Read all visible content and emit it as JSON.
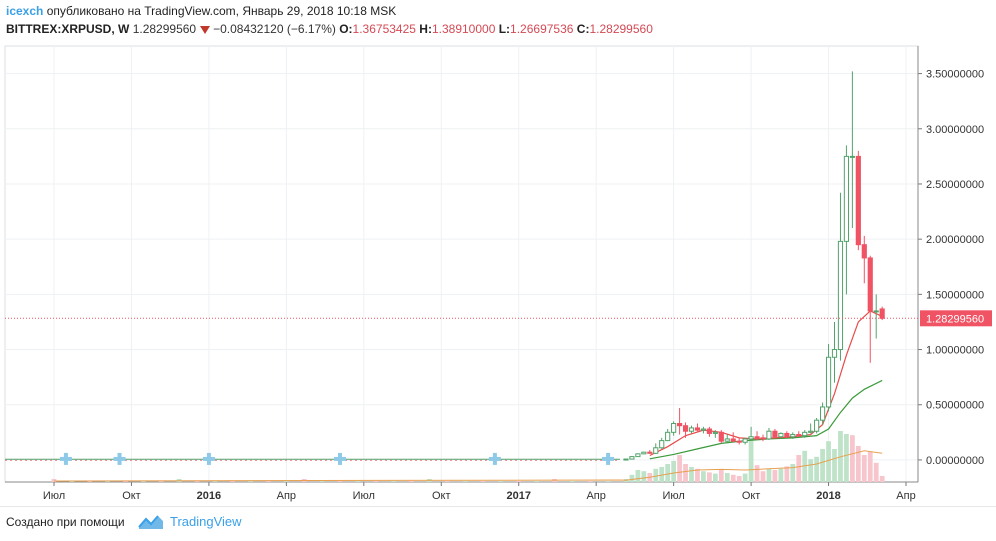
{
  "header": {
    "author": "icexch",
    "published": "опубликовано на TradingView.com, Январь 29, 2018 10:18 MSK",
    "symbol": "BITTREX:XRPUSD, W",
    "last": "1.28299560",
    "change": "−0.08432120 (−6.17%)",
    "o_label": "O:",
    "o": "1.36753425",
    "h_label": "H:",
    "h": "1.38910000",
    "l_label": "L:",
    "l": "1.26697536",
    "c_label": "C:",
    "c": "1.28299560"
  },
  "footer": {
    "made_with": "Создано при помощи",
    "brand": "TradingView"
  },
  "colors": {
    "up": "#52a36b",
    "up_fill": "#ffffff",
    "down": "#f05364",
    "ma_fast": "#e84a4a",
    "ma_slow": "#3a9a3a",
    "vol_ma": "#e8a050",
    "vol_up": "#bfe3c8",
    "vol_down": "#f7c5cc",
    "grid": "#eef1f4",
    "last_price": "#f05364",
    "event": "#8ec9e8"
  },
  "chart_data": {
    "type": "candlestick",
    "symbol": "BITTREX:XRPUSD",
    "timeframe": "W",
    "ylim": [
      -0.2,
      3.75
    ],
    "y_ticks": [
      "3.50000000",
      "3.00000000",
      "2.50000000",
      "2.00000000",
      "1.50000000",
      "1.00000000",
      "0.50000000",
      "0.00000000"
    ],
    "y_tick_values": [
      3.5,
      3.0,
      2.5,
      2.0,
      1.5,
      1.0,
      0.5,
      0.0
    ],
    "x_ticks": [
      "Июл",
      "Окт",
      "2016",
      "Апр",
      "Июл",
      "Окт",
      "2017",
      "Апр",
      "Июл",
      "Окт",
      "2018",
      "Апр"
    ],
    "x_tick_bold": [
      false,
      false,
      true,
      false,
      false,
      false,
      true,
      false,
      false,
      false,
      true,
      false
    ],
    "x_tick_weeks": [
      0,
      13,
      26,
      39,
      52,
      65,
      78,
      91,
      104,
      117,
      130,
      143
    ],
    "last_price": 1.282995,
    "last_price_label": "1.28299560",
    "events_weeks": [
      2,
      11,
      26,
      48,
      74,
      93
    ],
    "candles": [
      {
        "w": 96,
        "o": 0.006,
        "h": 0.009,
        "l": 0.006,
        "c": 0.008
      },
      {
        "w": 97,
        "o": 0.008,
        "h": 0.035,
        "l": 0.008,
        "c": 0.03
      },
      {
        "w": 98,
        "o": 0.03,
        "h": 0.06,
        "l": 0.028,
        "c": 0.055
      },
      {
        "w": 99,
        "o": 0.055,
        "h": 0.075,
        "l": 0.05,
        "c": 0.07
      },
      {
        "w": 100,
        "o": 0.07,
        "h": 0.09,
        "l": 0.055,
        "c": 0.06
      },
      {
        "w": 101,
        "o": 0.06,
        "h": 0.15,
        "l": 0.055,
        "c": 0.11
      },
      {
        "w": 102,
        "o": 0.11,
        "h": 0.2,
        "l": 0.1,
        "c": 0.175
      },
      {
        "w": 103,
        "o": 0.175,
        "h": 0.28,
        "l": 0.17,
        "c": 0.25
      },
      {
        "w": 104,
        "o": 0.25,
        "h": 0.35,
        "l": 0.22,
        "c": 0.33
      },
      {
        "w": 105,
        "o": 0.33,
        "h": 0.47,
        "l": 0.23,
        "c": 0.31
      },
      {
        "w": 106,
        "o": 0.31,
        "h": 0.34,
        "l": 0.2,
        "c": 0.26
      },
      {
        "w": 107,
        "o": 0.26,
        "h": 0.31,
        "l": 0.24,
        "c": 0.29
      },
      {
        "w": 108,
        "o": 0.29,
        "h": 0.33,
        "l": 0.26,
        "c": 0.27
      },
      {
        "w": 109,
        "o": 0.27,
        "h": 0.3,
        "l": 0.24,
        "c": 0.28
      },
      {
        "w": 110,
        "o": 0.28,
        "h": 0.3,
        "l": 0.21,
        "c": 0.24
      },
      {
        "w": 111,
        "o": 0.24,
        "h": 0.27,
        "l": 0.2,
        "c": 0.25
      },
      {
        "w": 112,
        "o": 0.25,
        "h": 0.27,
        "l": 0.15,
        "c": 0.17
      },
      {
        "w": 113,
        "o": 0.17,
        "h": 0.23,
        "l": 0.15,
        "c": 0.19
      },
      {
        "w": 114,
        "o": 0.19,
        "h": 0.25,
        "l": 0.16,
        "c": 0.17
      },
      {
        "w": 115,
        "o": 0.17,
        "h": 0.2,
        "l": 0.14,
        "c": 0.16
      },
      {
        "w": 116,
        "o": 0.16,
        "h": 0.2,
        "l": 0.14,
        "c": 0.19
      },
      {
        "w": 117,
        "o": 0.19,
        "h": 0.3,
        "l": 0.18,
        "c": 0.21
      },
      {
        "w": 118,
        "o": 0.21,
        "h": 0.26,
        "l": 0.18,
        "c": 0.2
      },
      {
        "w": 119,
        "o": 0.2,
        "h": 0.23,
        "l": 0.17,
        "c": 0.19
      },
      {
        "w": 120,
        "o": 0.19,
        "h": 0.29,
        "l": 0.18,
        "c": 0.26
      },
      {
        "w": 121,
        "o": 0.26,
        "h": 0.28,
        "l": 0.2,
        "c": 0.21
      },
      {
        "w": 122,
        "o": 0.21,
        "h": 0.25,
        "l": 0.19,
        "c": 0.24
      },
      {
        "w": 123,
        "o": 0.24,
        "h": 0.26,
        "l": 0.2,
        "c": 0.21
      },
      {
        "w": 124,
        "o": 0.21,
        "h": 0.25,
        "l": 0.19,
        "c": 0.23
      },
      {
        "w": 125,
        "o": 0.23,
        "h": 0.26,
        "l": 0.21,
        "c": 0.22
      },
      {
        "w": 126,
        "o": 0.22,
        "h": 0.27,
        "l": 0.2,
        "c": 0.25
      },
      {
        "w": 127,
        "o": 0.25,
        "h": 0.33,
        "l": 0.24,
        "c": 0.26
      },
      {
        "w": 128,
        "o": 0.26,
        "h": 0.38,
        "l": 0.24,
        "c": 0.36
      },
      {
        "w": 129,
        "o": 0.36,
        "h": 0.52,
        "l": 0.32,
        "c": 0.48
      },
      {
        "w": 130,
        "o": 0.48,
        "h": 1.05,
        "l": 0.44,
        "c": 0.93
      },
      {
        "w": 131,
        "o": 0.93,
        "h": 1.25,
        "l": 0.7,
        "c": 1.0
      },
      {
        "w": 132,
        "o": 1.0,
        "h": 2.42,
        "l": 0.9,
        "c": 1.98
      },
      {
        "w": 133,
        "o": 1.98,
        "h": 2.85,
        "l": 1.5,
        "c": 2.75
      },
      {
        "w": 134,
        "o": 2.75,
        "h": 3.52,
        "l": 2.1,
        "c": 2.75
      },
      {
        "w": 135,
        "o": 2.75,
        "h": 2.8,
        "l": 1.9,
        "c": 1.95
      },
      {
        "w": 136,
        "o": 1.95,
        "h": 2.03,
        "l": 1.6,
        "c": 1.83
      },
      {
        "w": 137,
        "o": 1.83,
        "h": 1.85,
        "l": 0.88,
        "c": 1.35
      },
      {
        "w": 138,
        "o": 1.35,
        "h": 1.5,
        "l": 1.1,
        "c": 1.35
      },
      {
        "w": 139,
        "o": 1.368,
        "h": 1.389,
        "l": 1.267,
        "c": 1.283
      }
    ],
    "flat_until_week": 95,
    "flat_value": 0.006,
    "ma_fast": [
      {
        "w": 100,
        "v": 0.04
      },
      {
        "w": 103,
        "v": 0.12
      },
      {
        "w": 106,
        "v": 0.22
      },
      {
        "w": 109,
        "v": 0.27
      },
      {
        "w": 112,
        "v": 0.25
      },
      {
        "w": 115,
        "v": 0.2
      },
      {
        "w": 118,
        "v": 0.19
      },
      {
        "w": 121,
        "v": 0.2
      },
      {
        "w": 124,
        "v": 0.21
      },
      {
        "w": 127,
        "v": 0.23
      },
      {
        "w": 129,
        "v": 0.32
      },
      {
        "w": 131,
        "v": 0.6
      },
      {
        "w": 133,
        "v": 0.95
      },
      {
        "w": 135,
        "v": 1.25
      },
      {
        "w": 137,
        "v": 1.35
      },
      {
        "w": 139,
        "v": 1.3
      }
    ],
    "ma_slow": [
      {
        "w": 100,
        "v": 0.01
      },
      {
        "w": 104,
        "v": 0.05
      },
      {
        "w": 108,
        "v": 0.1
      },
      {
        "w": 112,
        "v": 0.15
      },
      {
        "w": 116,
        "v": 0.175
      },
      {
        "w": 120,
        "v": 0.19
      },
      {
        "w": 124,
        "v": 0.2
      },
      {
        "w": 128,
        "v": 0.22
      },
      {
        "w": 130,
        "v": 0.28
      },
      {
        "w": 132,
        "v": 0.43
      },
      {
        "w": 134,
        "v": 0.56
      },
      {
        "w": 136,
        "v": 0.64
      },
      {
        "w": 139,
        "v": 0.72
      }
    ],
    "volume_scale_max": 1.0,
    "volumes": [
      {
        "w": 96,
        "v": 0.05,
        "up": true
      },
      {
        "w": 97,
        "v": 0.12,
        "up": true
      },
      {
        "w": 98,
        "v": 0.2,
        "up": true
      },
      {
        "w": 99,
        "v": 0.18,
        "up": true
      },
      {
        "w": 100,
        "v": 0.15,
        "up": false
      },
      {
        "w": 101,
        "v": 0.22,
        "up": true
      },
      {
        "w": 102,
        "v": 0.25,
        "up": true
      },
      {
        "w": 103,
        "v": 0.3,
        "up": true
      },
      {
        "w": 104,
        "v": 0.35,
        "up": true
      },
      {
        "w": 105,
        "v": 0.45,
        "up": false
      },
      {
        "w": 106,
        "v": 0.3,
        "up": false
      },
      {
        "w": 107,
        "v": 0.25,
        "up": true
      },
      {
        "w": 108,
        "v": 0.22,
        "up": false
      },
      {
        "w": 109,
        "v": 0.18,
        "up": true
      },
      {
        "w": 110,
        "v": 0.16,
        "up": false
      },
      {
        "w": 111,
        "v": 0.14,
        "up": true
      },
      {
        "w": 112,
        "v": 0.2,
        "up": false
      },
      {
        "w": 113,
        "v": 0.15,
        "up": true
      },
      {
        "w": 114,
        "v": 0.12,
        "up": false
      },
      {
        "w": 115,
        "v": 0.1,
        "up": false
      },
      {
        "w": 116,
        "v": 0.14,
        "up": true
      },
      {
        "w": 117,
        "v": 0.72,
        "up": true
      },
      {
        "w": 118,
        "v": 0.28,
        "up": false
      },
      {
        "w": 119,
        "v": 0.18,
        "up": false
      },
      {
        "w": 120,
        "v": 0.22,
        "up": true
      },
      {
        "w": 121,
        "v": 0.2,
        "up": false
      },
      {
        "w": 122,
        "v": 0.22,
        "up": true
      },
      {
        "w": 123,
        "v": 0.26,
        "up": false
      },
      {
        "w": 124,
        "v": 0.3,
        "up": true
      },
      {
        "w": 125,
        "v": 0.45,
        "up": false
      },
      {
        "w": 126,
        "v": 0.52,
        "up": true
      },
      {
        "w": 127,
        "v": 0.38,
        "up": true
      },
      {
        "w": 128,
        "v": 0.42,
        "up": true
      },
      {
        "w": 129,
        "v": 0.55,
        "up": true
      },
      {
        "w": 130,
        "v": 0.68,
        "up": true
      },
      {
        "w": 131,
        "v": 0.55,
        "up": true
      },
      {
        "w": 132,
        "v": 0.85,
        "up": true
      },
      {
        "w": 133,
        "v": 0.8,
        "up": true
      },
      {
        "w": 134,
        "v": 0.78,
        "up": false
      },
      {
        "w": 135,
        "v": 0.6,
        "up": false
      },
      {
        "w": 136,
        "v": 0.45,
        "up": false
      },
      {
        "w": 137,
        "v": 0.5,
        "up": false
      },
      {
        "w": 138,
        "v": 0.32,
        "up": false
      },
      {
        "w": 139,
        "v": 0.1,
        "up": false
      }
    ],
    "volume_ma": [
      {
        "w": 96,
        "v": 0.03
      },
      {
        "w": 100,
        "v": 0.08
      },
      {
        "w": 104,
        "v": 0.15
      },
      {
        "w": 108,
        "v": 0.2
      },
      {
        "w": 112,
        "v": 0.21
      },
      {
        "w": 116,
        "v": 0.2
      },
      {
        "w": 120,
        "v": 0.22
      },
      {
        "w": 124,
        "v": 0.24
      },
      {
        "w": 128,
        "v": 0.3
      },
      {
        "w": 132,
        "v": 0.42
      },
      {
        "w": 136,
        "v": 0.52
      },
      {
        "w": 139,
        "v": 0.48
      }
    ]
  }
}
